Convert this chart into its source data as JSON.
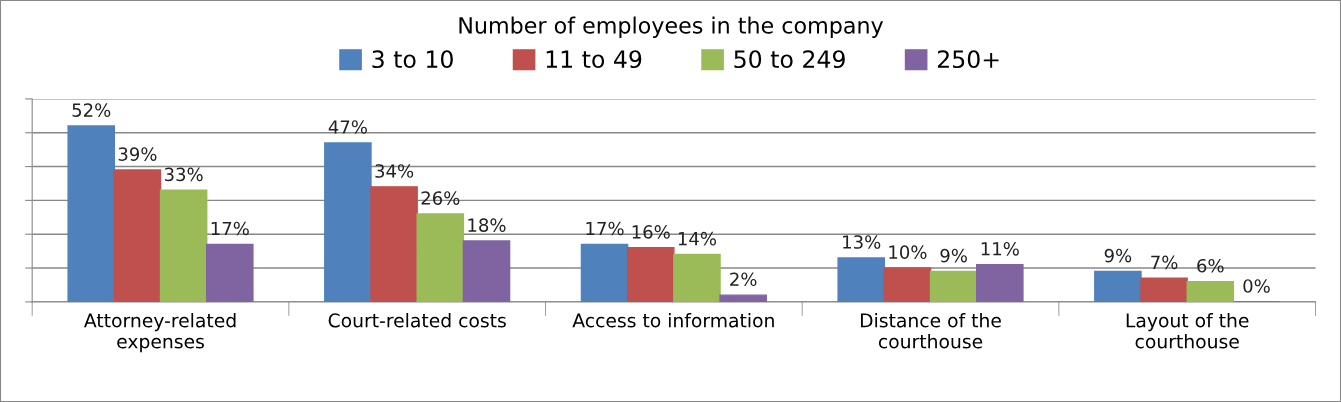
{
  "chart_data": {
    "type": "bar",
    "legend_title": "Number of employees in the company",
    "categories": [
      "Attorney-related\nexpenses",
      "Court-related costs",
      "Access to information",
      "Distance of the\ncourthouse",
      "Layout of the\ncourthouse"
    ],
    "series": [
      {
        "name": "3 to 10",
        "color": "#4f81bd",
        "values": [
          52,
          47,
          17,
          13,
          9
        ],
        "value_labels": [
          "52%",
          "47%",
          "17%",
          "13%",
          "9%"
        ]
      },
      {
        "name": "11 to 49",
        "color": "#c0504d",
        "values": [
          39,
          34,
          16,
          10,
          7
        ],
        "value_labels": [
          "39%",
          "34%",
          "16%",
          "10%",
          "7%"
        ]
      },
      {
        "name": "50 to 249",
        "color": "#9bbb59",
        "values": [
          33,
          26,
          14,
          9,
          6
        ],
        "value_labels": [
          "33%",
          "26%",
          "14%",
          "9%",
          "6%"
        ]
      },
      {
        "name": "250+",
        "color": "#8064a2",
        "values": [
          17,
          18,
          2,
          11,
          0
        ],
        "value_labels": [
          "17%",
          "18%",
          "2%",
          "11%",
          "0%"
        ]
      }
    ],
    "ylim": [
      0,
      60
    ],
    "yticks": [
      {
        "value": 0,
        "label": null
      },
      {
        "value": 10,
        "label": null
      },
      {
        "value": 20,
        "label": null
      },
      {
        "value": 30,
        "label": null
      },
      {
        "value": 40,
        "label": null
      },
      {
        "value": 50,
        "label": null
      },
      {
        "value": 60,
        "label": null
      }
    ],
    "tick_labels": "x",
    "grid": "y",
    "legend": "top"
  }
}
